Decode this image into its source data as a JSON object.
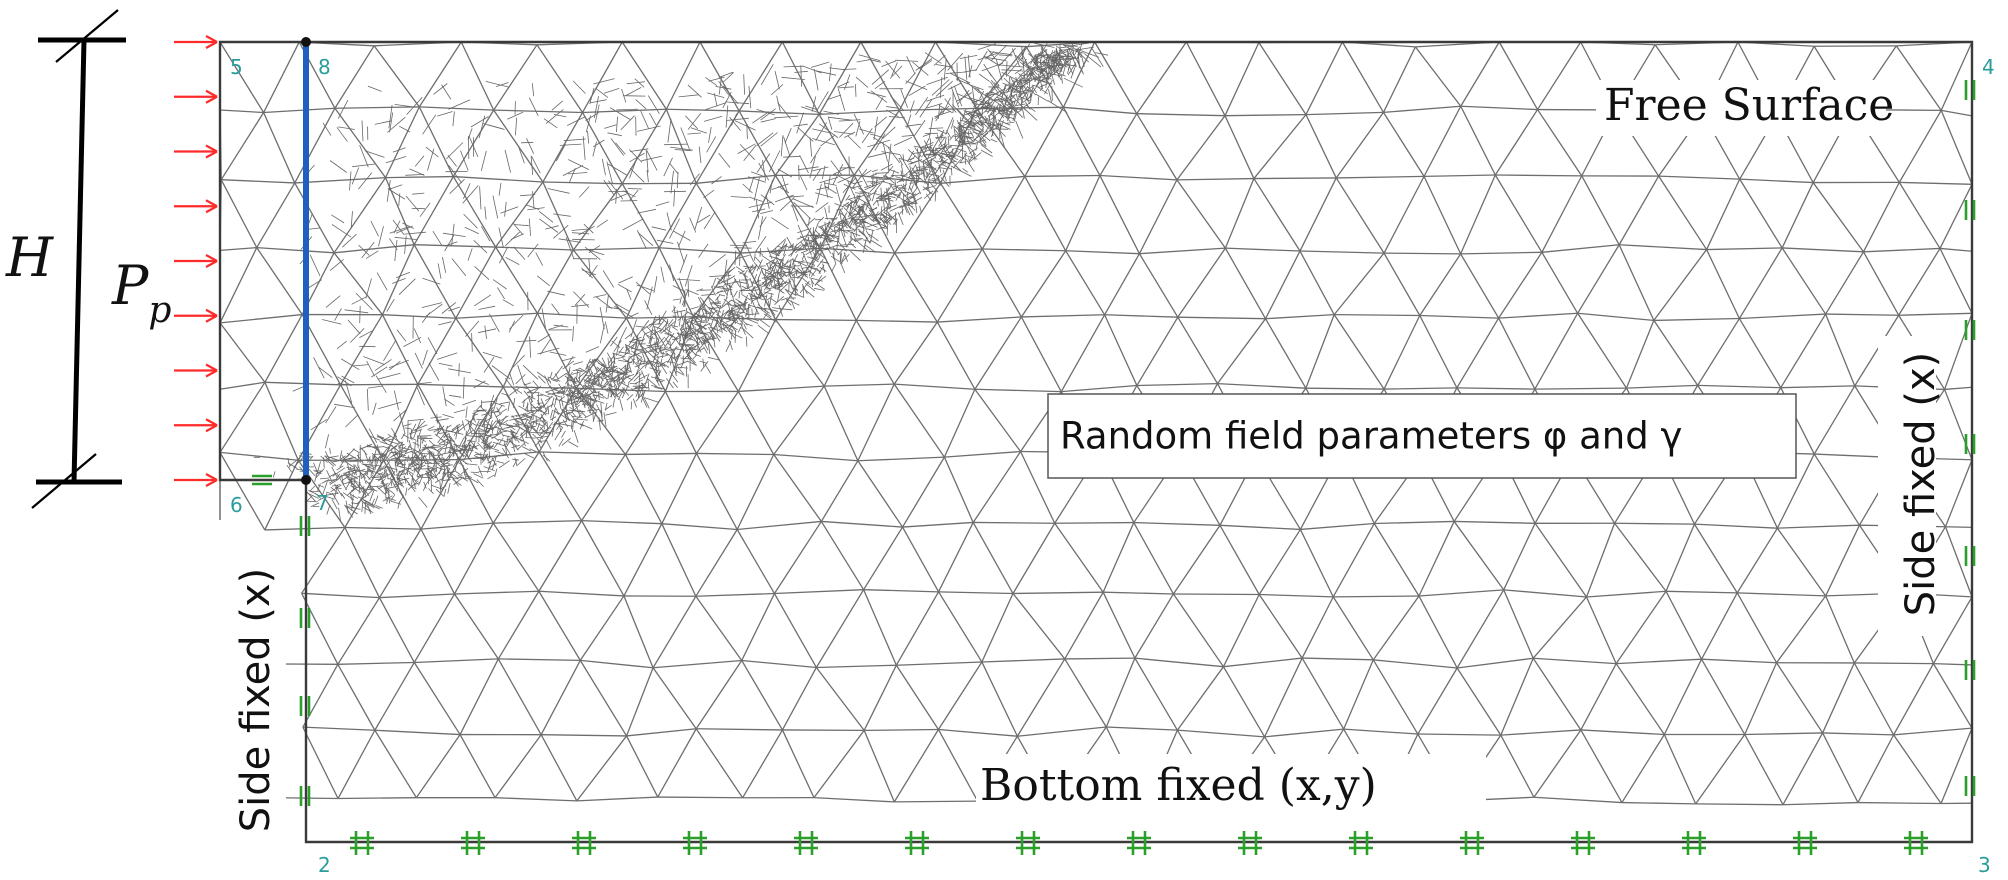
{
  "diagram": {
    "labels": {
      "height": "H",
      "pressure_main": "P",
      "pressure_sub": "p",
      "free_surface": "Free Surface",
      "random_field": "Random field parameters φ and γ",
      "side_fixed_left": "Side fixed (x)",
      "side_fixed_right": "Side fixed (x)",
      "bottom_fixed": "Bottom fixed (x,y)"
    },
    "nodes": {
      "n2": "2",
      "n3": "3",
      "n4": "4",
      "n5": "5",
      "n6": "6",
      "n7": "7",
      "n8": "8"
    },
    "colors": {
      "mesh": "#6e6e6e",
      "pressure_arrow": "#ff2a2a",
      "wall": "#1f5fbf",
      "constraint": "#2aa02a",
      "node_label": "#2a9c9c",
      "text": "#111111"
    }
  }
}
